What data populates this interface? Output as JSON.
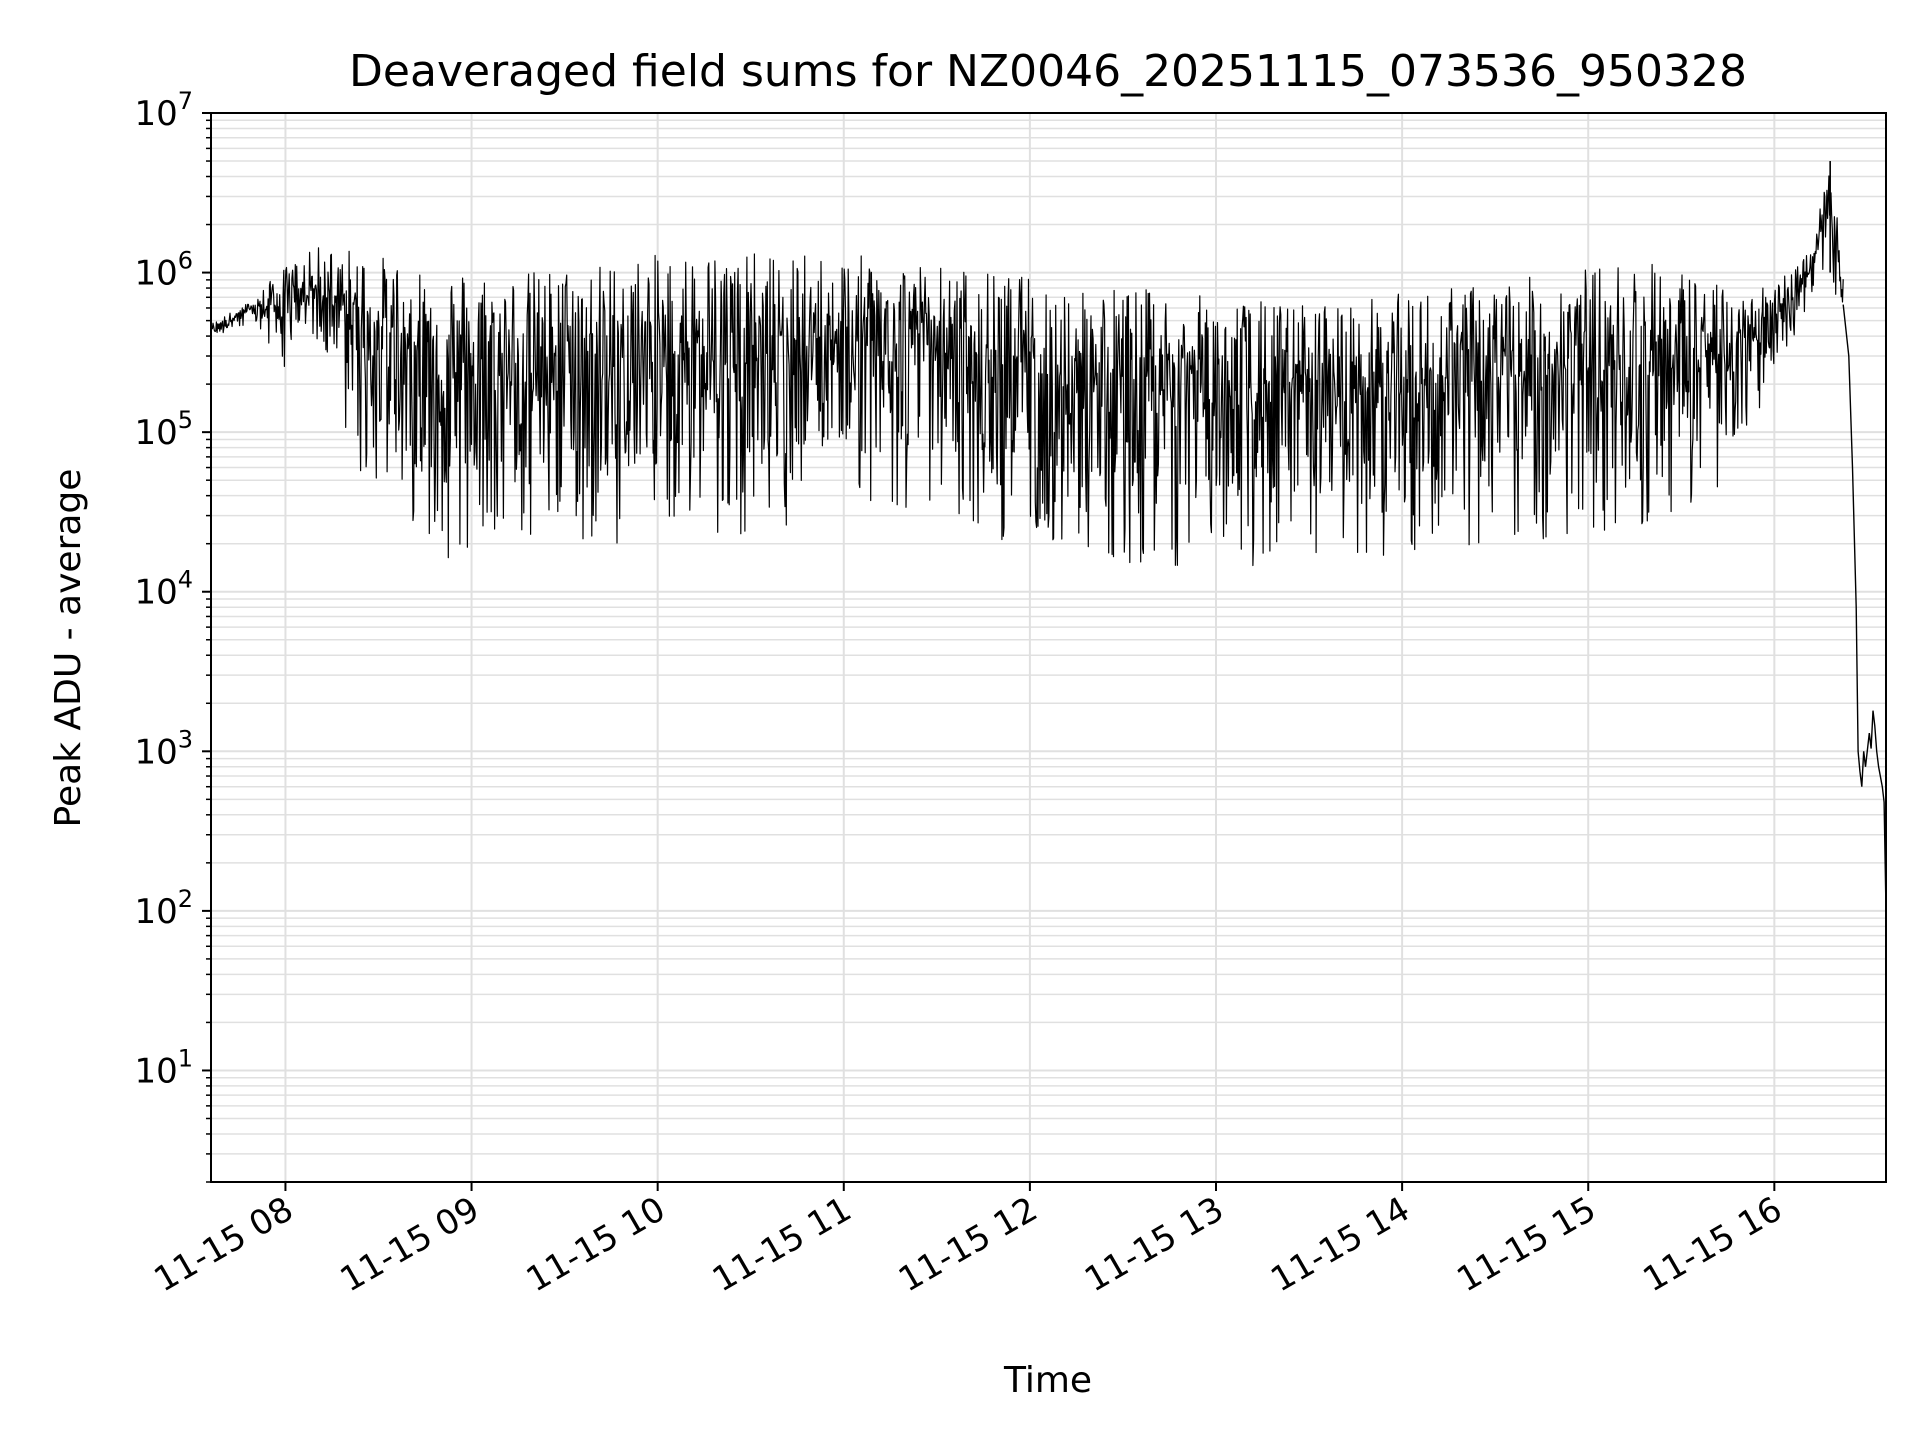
{
  "chart_data": {
    "type": "line",
    "title": "Deaveraged field sums for NZ0046_20251115_073536_950328",
    "xlabel": "Time",
    "ylabel": "Peak ADU - average",
    "yscale": "log",
    "ylim": [
      2,
      10000000
    ],
    "xlim_hours": [
      7.6,
      16.6
    ],
    "grid": true,
    "line_color": "#000000",
    "grid_color": "#e0e0e0",
    "x_ticks": [
      {
        "hour": 8,
        "label": "11-15 08"
      },
      {
        "hour": 9,
        "label": "11-15 09"
      },
      {
        "hour": 10,
        "label": "11-15 10"
      },
      {
        "hour": 11,
        "label": "11-15 11"
      },
      {
        "hour": 12,
        "label": "11-15 12"
      },
      {
        "hour": 13,
        "label": "11-15 13"
      },
      {
        "hour": 14,
        "label": "11-15 14"
      },
      {
        "hour": 15,
        "label": "11-15 15"
      },
      {
        "hour": 16,
        "label": "11-15 16"
      }
    ],
    "y_ticks": [
      {
        "value": 10,
        "base": "10",
        "exp": "1"
      },
      {
        "value": 100,
        "base": "10",
        "exp": "2"
      },
      {
        "value": 1000,
        "base": "10",
        "exp": "3"
      },
      {
        "value": 10000,
        "base": "10",
        "exp": "4"
      },
      {
        "value": 100000,
        "base": "10",
        "exp": "5"
      },
      {
        "value": 1000000,
        "base": "10",
        "exp": "6"
      },
      {
        "value": 10000000,
        "base": "10",
        "exp": "7"
      }
    ],
    "series": [
      {
        "name": "Deaveraged field sum",
        "envelope": [
          {
            "hour": 7.6,
            "high": 480000,
            "low": 380000
          },
          {
            "hour": 7.8,
            "high": 650000,
            "low": 450000
          },
          {
            "hour": 8.0,
            "high": 1100000,
            "low": 250000
          },
          {
            "hour": 8.2,
            "high": 1500000,
            "low": 300000
          },
          {
            "hour": 8.4,
            "high": 1400000,
            "low": 50000
          },
          {
            "hour": 8.6,
            "high": 1200000,
            "low": 35000
          },
          {
            "hour": 8.9,
            "high": 1100000,
            "low": 15000
          },
          {
            "hour": 9.2,
            "high": 1000000,
            "low": 20000
          },
          {
            "hour": 9.5,
            "high": 1100000,
            "low": 20000
          },
          {
            "hour": 9.8,
            "high": 1200000,
            "low": 20000
          },
          {
            "hour": 10.2,
            "high": 1400000,
            "low": 25000
          },
          {
            "hour": 10.6,
            "high": 1300000,
            "low": 20000
          },
          {
            "hour": 11.0,
            "high": 1300000,
            "low": 35000
          },
          {
            "hour": 11.4,
            "high": 1200000,
            "low": 30000
          },
          {
            "hour": 11.8,
            "high": 1000000,
            "low": 22000
          },
          {
            "hour": 12.2,
            "high": 900000,
            "low": 16000
          },
          {
            "hour": 12.6,
            "high": 800000,
            "low": 15000
          },
          {
            "hour": 13.0,
            "high": 700000,
            "low": 14000
          },
          {
            "hour": 13.4,
            "high": 650000,
            "low": 13000
          },
          {
            "hour": 13.8,
            "high": 700000,
            "low": 15000
          },
          {
            "hour": 14.2,
            "high": 800000,
            "low": 18000
          },
          {
            "hour": 14.6,
            "high": 900000,
            "low": 20000
          },
          {
            "hour": 15.0,
            "high": 1100000,
            "low": 22000
          },
          {
            "hour": 15.3,
            "high": 1200000,
            "low": 25000
          },
          {
            "hour": 15.6,
            "high": 1000000,
            "low": 30000
          },
          {
            "hour": 15.8,
            "high": 700000,
            "low": 60000
          },
          {
            "hour": 16.0,
            "high": 900000,
            "low": 250000
          },
          {
            "hour": 16.2,
            "high": 1400000,
            "low": 600000
          },
          {
            "hour": 16.3,
            "high": 5000000,
            "low": 900000
          },
          {
            "hour": 16.37,
            "high": 1100000,
            "low": 450000
          }
        ],
        "tail": [
          {
            "hour": 16.4,
            "value": 300000
          },
          {
            "hour": 16.42,
            "value": 60000
          },
          {
            "hour": 16.44,
            "value": 8000
          },
          {
            "hour": 16.45,
            "value": 1000
          },
          {
            "hour": 16.46,
            "value": 750
          },
          {
            "hour": 16.48,
            "value": 1000
          },
          {
            "hour": 16.51,
            "value": 1300
          },
          {
            "hour": 16.53,
            "value": 1800
          },
          {
            "hour": 16.55,
            "value": 1000
          },
          {
            "hour": 16.58,
            "value": 600
          },
          {
            "hour": 16.6,
            "value": 100
          }
        ]
      }
    ]
  }
}
